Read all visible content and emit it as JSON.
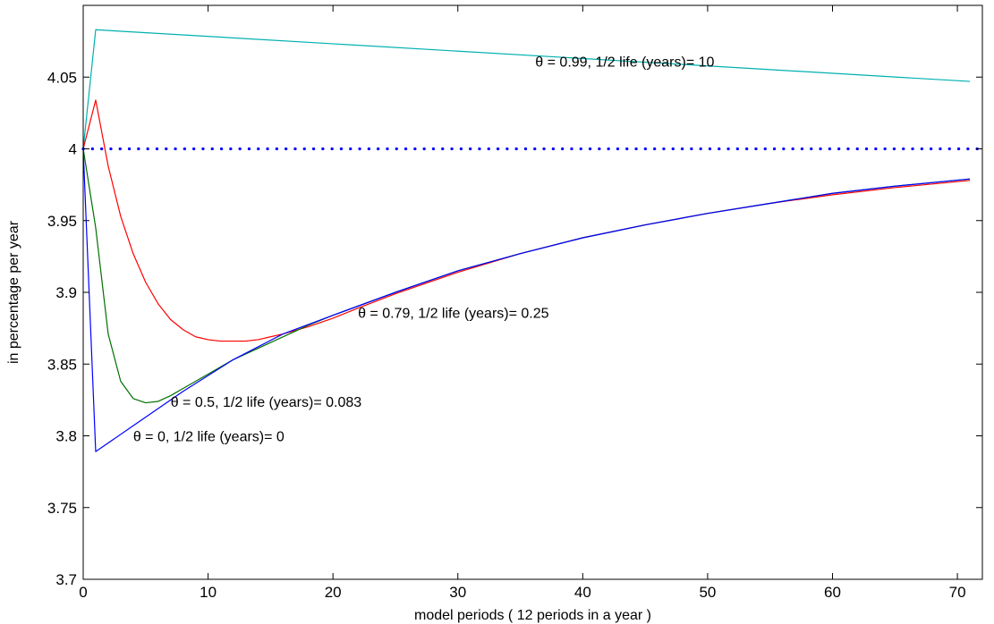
{
  "chart_data": {
    "type": "line",
    "xlabel": "model periods ( 12 periods in a year )",
    "ylabel": "in percentage per year",
    "xlim": [
      0,
      72
    ],
    "ylim": [
      3.7,
      4.1
    ],
    "xticks": [
      0,
      10,
      20,
      30,
      40,
      50,
      60,
      70
    ],
    "yticks": [
      3.7,
      3.75,
      3.8,
      3.85,
      3.9,
      3.95,
      4,
      4.05
    ],
    "ytick_labels": [
      "3.7",
      "3.75",
      "3.8",
      "3.85",
      "3.9",
      "3.95",
      "4",
      "4.05"
    ],
    "xtick_labels": [
      "0",
      "10",
      "20",
      "30",
      "40",
      "50",
      "60",
      "70"
    ],
    "grid": false,
    "series": [
      {
        "color": "#00b0b0",
        "style": "solid",
        "x": [
          0,
          1,
          71
        ],
        "y": [
          4.0,
          4.083,
          4.047
        ]
      },
      {
        "color": "#ff0000",
        "style": "solid",
        "x": [
          0,
          1,
          2,
          3,
          4,
          5,
          6,
          7,
          8,
          9,
          10,
          11,
          12,
          13,
          14,
          15,
          16,
          18,
          20,
          22,
          25,
          30,
          35,
          40,
          45,
          50,
          55,
          60,
          65,
          71
        ],
        "y": [
          4.0,
          4.034,
          3.988,
          3.953,
          3.927,
          3.907,
          3.892,
          3.881,
          3.874,
          3.869,
          3.867,
          3.866,
          3.866,
          3.866,
          3.867,
          3.869,
          3.871,
          3.876,
          3.882,
          3.889,
          3.899,
          3.914,
          3.927,
          3.938,
          3.947,
          3.955,
          3.962,
          3.968,
          3.973,
          3.978
        ]
      },
      {
        "color": "#007000",
        "style": "solid",
        "x": [
          0,
          1,
          2,
          3,
          4,
          5,
          6,
          7,
          8,
          10,
          12,
          15,
          18,
          20,
          25,
          30,
          35,
          40,
          45,
          50,
          55,
          60,
          65,
          71
        ],
        "y": [
          4.0,
          3.945,
          3.871,
          3.838,
          3.826,
          3.823,
          3.824,
          3.828,
          3.833,
          3.843,
          3.853,
          3.865,
          3.877,
          3.884,
          3.9,
          3.915,
          3.927,
          3.938,
          3.947,
          3.955,
          3.962,
          3.969,
          3.974,
          3.979
        ]
      },
      {
        "color": "#0000ff",
        "style": "solid",
        "x": [
          0,
          1,
          4,
          8,
          12,
          16,
          20,
          25,
          30,
          35,
          40,
          45,
          50,
          55,
          60,
          65,
          71
        ],
        "y": [
          4.0,
          3.789,
          3.807,
          3.831,
          3.853,
          3.871,
          3.884,
          3.9,
          3.915,
          3.927,
          3.938,
          3.947,
          3.955,
          3.962,
          3.969,
          3.974,
          3.979
        ]
      },
      {
        "color": "#0000ff",
        "style": "dotted",
        "x": [
          0,
          72
        ],
        "y": [
          4.0,
          4.0
        ]
      }
    ],
    "annotations": [
      {
        "text": "θ = 0.99, 1/2 life (years)= 10",
        "x": 36.2,
        "y": 4.061
      },
      {
        "text": "θ = 0.79, 1/2 life (years)= 0.25",
        "x": 22.0,
        "y": 3.886
      },
      {
        "text": "θ = 0.5, 1/2 life (years)= 0.083",
        "x": 7.0,
        "y": 3.824
      },
      {
        "text": "θ = 0, 1/2 life (years)= 0",
        "x": 4.0,
        "y": 3.8
      }
    ]
  }
}
